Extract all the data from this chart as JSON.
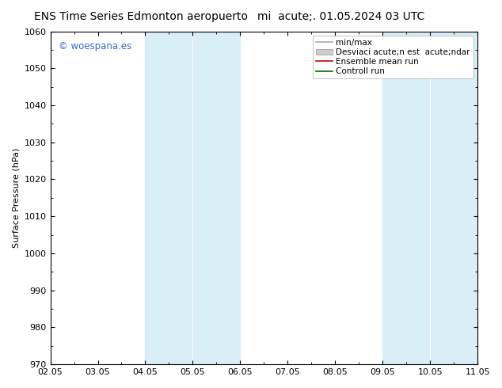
{
  "title_left": "ENS Time Series Edmonton aeropuerto",
  "title_right": "mi  acute;. 01.05.2024 03 UTC",
  "ylabel": "Surface Pressure (hPa)",
  "ylim": [
    970,
    1060
  ],
  "yticks": [
    970,
    980,
    990,
    1000,
    1010,
    1020,
    1030,
    1040,
    1050,
    1060
  ],
  "xtick_labels": [
    "02.05",
    "03.05",
    "04.05",
    "05.05",
    "06.05",
    "07.05",
    "08.05",
    "09.05",
    "10.05",
    "11.05"
  ],
  "shade_bands": [
    {
      "xmin": 2,
      "xmax": 4
    },
    {
      "xmin": 7,
      "xmax": 9
    }
  ],
  "shade_color": "#daeef8",
  "background_color": "#ffffff",
  "watermark": "© woespana.es",
  "watermark_color": "#3366cc",
  "legend_label_minmax": "min/max",
  "legend_label_std": "Desviaci acute;n est  acute;ndar",
  "legend_label_ensemble": "Ensemble mean run",
  "legend_label_control": "Controll run",
  "title_fontsize": 10,
  "axis_label_fontsize": 8,
  "tick_fontsize": 8,
  "legend_fontsize": 7.5
}
